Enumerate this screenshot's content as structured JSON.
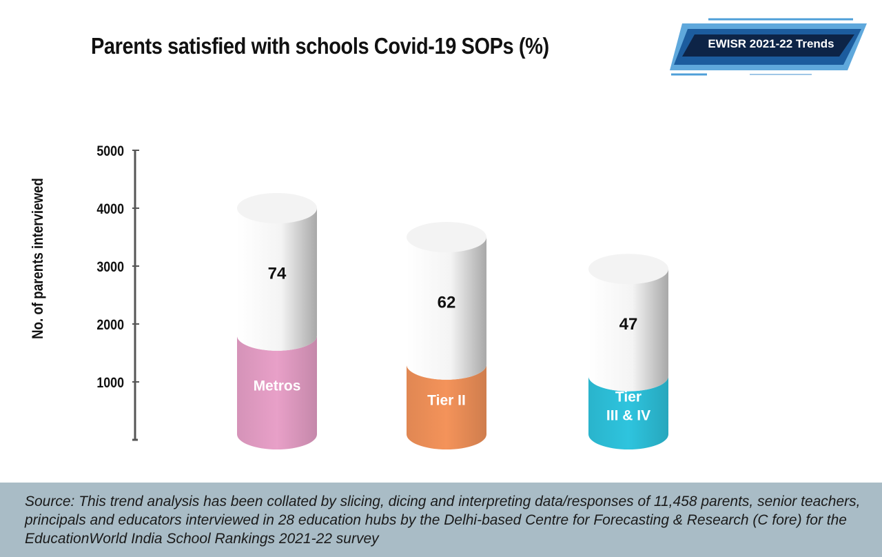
{
  "badge": {
    "text": "EWISR 2021-22 Trends"
  },
  "chart_data": {
    "type": "bar",
    "title": "Parents satisfied with schools Covid-19 SOPs (%)",
    "ylabel": "No. of parents interviewed",
    "yticks": [
      "5000",
      "4000",
      "3000",
      "2000",
      "1000"
    ],
    "ylim": [
      0,
      5000
    ],
    "categories": [
      "Metros",
      "Tier II",
      "Tier III & IV"
    ],
    "category_lines": [
      [
        "Metros"
      ],
      [
        "Tier II"
      ],
      [
        "Tier",
        "III & IV"
      ]
    ],
    "values": [
      74,
      62,
      47
    ],
    "total_height_values": [
      4000,
      3500,
      2950
    ],
    "colored_height_values": [
      1800,
      1300,
      1100
    ],
    "colors": [
      "#e8a0c8",
      "#f4935a",
      "#2ec4de"
    ],
    "grid": false,
    "legend": "none"
  },
  "footer": {
    "source": "Source: This trend analysis has been collated by slicing, dicing and interpreting data/responses of 11,458 parents, senior teachers, principals and educators interviewed in 28 education hubs by the Delhi-based Centre for Forecasting & Research (C fore) for the EducationWorld India School Rankings 2021-22 survey"
  }
}
